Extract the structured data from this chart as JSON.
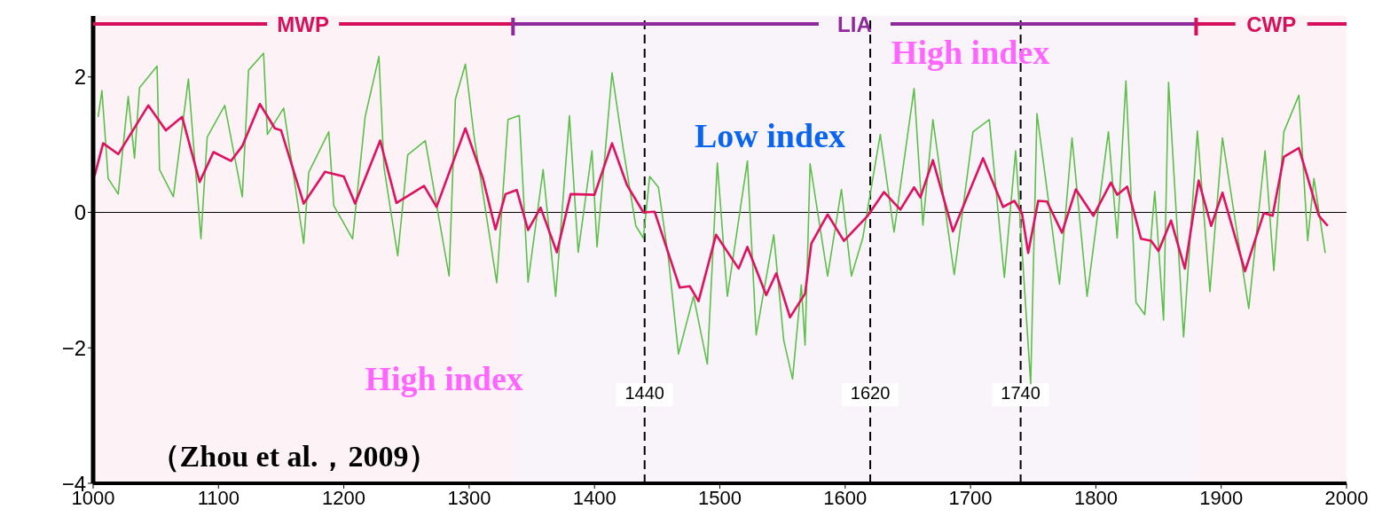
{
  "chart_data": {
    "type": "line",
    "xlim": [
      1000,
      2000
    ],
    "xticks": [
      1000,
      1100,
      1200,
      1300,
      1400,
      1500,
      1600,
      1700,
      1800,
      1900,
      2000
    ],
    "ylim": [
      -4,
      2.9
    ],
    "yticks": [
      {
        "value": -4,
        "label": "−4"
      },
      {
        "value": -2,
        "label": "−2"
      },
      0,
      2
    ],
    "grid": false,
    "legend": false,
    "marker": "none",
    "line_style": "solid",
    "series": [
      {
        "color": "#5cbf4a",
        "x": [
          1004,
          1007,
          1012,
          1020,
          1028,
          1033,
          1037,
          1051,
          1053,
          1064,
          1076,
          1086,
          1091,
          1105,
          1119,
          1124,
          1136,
          1139,
          1152,
          1168,
          1172,
          1188,
          1192,
          1207,
          1217,
          1228,
          1232,
          1243,
          1251,
          1265,
          1284,
          1289,
          1297,
          1304,
          1310,
          1322,
          1331,
          1340,
          1347,
          1359,
          1369,
          1380,
          1387,
          1398,
          1402,
          1414,
          1423,
          1433,
          1439,
          1444,
          1451,
          1459,
          1467,
          1479,
          1490,
          1498,
          1506,
          1522,
          1529,
          1543,
          1551,
          1558,
          1565,
          1568,
          1572,
          1586,
          1597,
          1605,
          1614,
          1628,
          1639,
          1655,
          1662,
          1670,
          1687,
          1702,
          1715,
          1727,
          1736,
          1748,
          1753,
          1771,
          1781,
          1793,
          1810,
          1817,
          1824,
          1832,
          1839,
          1847,
          1854,
          1858,
          1870,
          1881,
          1891,
          1901,
          1922,
          1935,
          1942,
          1950,
          1962,
          1969,
          1974,
          1983
        ],
        "values": [
          1.41,
          1.8,
          0.5,
          0.27,
          1.71,
          0.8,
          1.84,
          2.16,
          0.63,
          0.23,
          1.97,
          -0.39,
          1.11,
          1.58,
          0.23,
          2.1,
          2.35,
          1.15,
          1.54,
          -0.46,
          0.59,
          1.19,
          0.1,
          -0.39,
          1.41,
          2.3,
          0.67,
          -0.64,
          0.85,
          1.06,
          -0.94,
          1.67,
          2.19,
          1.11,
          0.4,
          -1.04,
          1.37,
          1.43,
          -1.03,
          0.63,
          -1.24,
          1.43,
          -0.59,
          0.91,
          -0.51,
          2.06,
          0.93,
          -0.2,
          -0.38,
          0.53,
          0.37,
          -0.68,
          -2.09,
          -1.24,
          -2.24,
          0.73,
          -1.24,
          0.76,
          -1.81,
          -0.33,
          -1.89,
          -2.46,
          -1.07,
          -1.96,
          0.72,
          -0.94,
          0.34,
          -0.94,
          -0.38,
          1.15,
          -0.29,
          1.83,
          -0.19,
          1.37,
          -0.92,
          1.19,
          1.37,
          -0.96,
          0.91,
          -2.53,
          1.46,
          -1.06,
          1.1,
          -1.24,
          1.19,
          -0.38,
          1.94,
          -1.33,
          -1.51,
          0.31,
          -1.59,
          1.92,
          -1.84,
          1.2,
          -1.17,
          1.1,
          -1.42,
          0.91,
          -0.86,
          1.19,
          1.73,
          -0.42,
          0.5,
          -0.6
        ]
      },
      {
        "color": "#e0115f",
        "x": [
          1001,
          1008,
          1020,
          1044,
          1058,
          1071,
          1085,
          1096,
          1110,
          1119,
          1133,
          1145,
          1150,
          1168,
          1185,
          1200,
          1209,
          1229,
          1242,
          1264,
          1274,
          1297,
          1311,
          1321,
          1329,
          1338,
          1347,
          1357,
          1370,
          1381,
          1400,
          1414,
          1426,
          1439,
          1448,
          1468,
          1476,
          1483,
          1497,
          1515,
          1522,
          1537,
          1545,
          1556,
          1568,
          1573,
          1586,
          1599,
          1618,
          1631,
          1644,
          1655,
          1660,
          1670,
          1686,
          1710,
          1726,
          1735,
          1741,
          1746,
          1754,
          1761,
          1773,
          1784,
          1798,
          1812,
          1817,
          1825,
          1836,
          1844,
          1850,
          1860,
          1871,
          1882,
          1892,
          1901,
          1919,
          1934,
          1941,
          1950,
          1962,
          1978,
          1985
        ],
        "values": [
          0.53,
          1.02,
          0.86,
          1.58,
          1.21,
          1.41,
          0.45,
          0.89,
          0.76,
          0.98,
          1.6,
          1.24,
          1.21,
          0.13,
          0.6,
          0.53,
          0.13,
          1.06,
          0.14,
          0.39,
          0.08,
          1.24,
          0.5,
          -0.25,
          0.27,
          0.33,
          -0.26,
          0.07,
          -0.59,
          0.27,
          0.26,
          1.02,
          0.4,
          0,
          0.01,
          -1.11,
          -1.09,
          -1.31,
          -0.33,
          -0.83,
          -0.51,
          -1.22,
          -0.9,
          -1.55,
          -1.2,
          -0.46,
          -0.03,
          -0.42,
          -0.05,
          0.3,
          0.04,
          0.37,
          0.22,
          0.77,
          -0.28,
          0.8,
          0.08,
          0.17,
          -0.01,
          -0.6,
          0.17,
          0.16,
          -0.3,
          0.34,
          -0.05,
          0.44,
          0.26,
          0.38,
          -0.39,
          -0.42,
          -0.57,
          -0.12,
          -0.83,
          0.47,
          -0.2,
          0.29,
          -0.87,
          -0.01,
          -0.05,
          0.82,
          0.95,
          -0.05,
          -0.2
        ]
      }
    ],
    "ref_lines": [
      {
        "axis": "y",
        "value": 0,
        "color": "#000000",
        "line_style": "solid"
      },
      {
        "axis": "x",
        "value": 1440,
        "label": "1440",
        "color": "#000000",
        "line_style": "dashed"
      },
      {
        "axis": "x",
        "value": 1620,
        "label": "1620",
        "color": "#000000",
        "line_style": "dashed"
      },
      {
        "axis": "x",
        "value": 1740,
        "label": "1740",
        "color": "#000000",
        "line_style": "dashed"
      }
    ],
    "bands": [
      {
        "axis": "x",
        "from": 1000,
        "to": 1335,
        "label": "MWP",
        "color": "#d6105a"
      },
      {
        "axis": "x",
        "from": 1335,
        "to": 1880,
        "label": "LIA",
        "color": "#8e2a9c"
      },
      {
        "axis": "x",
        "from": 1880,
        "to": 2000,
        "label": "CWP",
        "color": "#d6105a"
      }
    ],
    "annotations": [
      "High index",
      "Low index",
      "High index",
      "（Zhou et al.，2009）"
    ]
  }
}
